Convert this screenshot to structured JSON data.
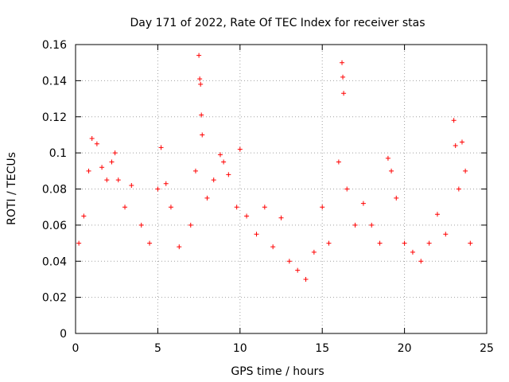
{
  "chart_data": {
    "type": "scatter",
    "title": "Day 171 of 2022, Rate Of TEC Index for receiver stas",
    "xlabel": "GPS time / hours",
    "ylabel": "ROTI / TECUs",
    "xlim": [
      0,
      25
    ],
    "ylim": [
      0,
      0.16
    ],
    "xticks": [
      0,
      5,
      10,
      15,
      20,
      25
    ],
    "yticks": [
      0,
      0.02,
      0.04,
      0.06,
      0.08,
      0.1,
      0.12,
      0.14,
      0.16
    ],
    "xtick_labels": [
      "0",
      "5",
      "10",
      "15",
      "20",
      "25"
    ],
    "ytick_labels": [
      "0",
      "0.02",
      "0.04",
      "0.06",
      "0.08",
      "0.1",
      "0.12",
      "0.14",
      "0.16"
    ],
    "grid": true,
    "legend": "none",
    "marker": "+",
    "marker_color": "#ff0000",
    "series": [
      {
        "points": [
          [
            0.2,
            0.05
          ],
          [
            0.5,
            0.065
          ],
          [
            0.8,
            0.09
          ],
          [
            1.0,
            0.108
          ],
          [
            1.3,
            0.105
          ],
          [
            1.6,
            0.092
          ],
          [
            1.9,
            0.085
          ],
          [
            2.2,
            0.095
          ],
          [
            2.4,
            0.1
          ],
          [
            2.6,
            0.085
          ],
          [
            3.0,
            0.07
          ],
          [
            3.4,
            0.082
          ],
          [
            4.0,
            0.06
          ],
          [
            4.5,
            0.05
          ],
          [
            5.0,
            0.08
          ],
          [
            5.2,
            0.103
          ],
          [
            5.5,
            0.083
          ],
          [
            5.8,
            0.07
          ],
          [
            6.3,
            0.048
          ],
          [
            7.0,
            0.06
          ],
          [
            7.3,
            0.09
          ],
          [
            7.5,
            0.154
          ],
          [
            7.55,
            0.141
          ],
          [
            7.6,
            0.138
          ],
          [
            7.65,
            0.121
          ],
          [
            7.7,
            0.11
          ],
          [
            8.0,
            0.075
          ],
          [
            8.4,
            0.085
          ],
          [
            8.8,
            0.099
          ],
          [
            9.0,
            0.095
          ],
          [
            9.3,
            0.088
          ],
          [
            9.8,
            0.07
          ],
          [
            10.0,
            0.102
          ],
          [
            10.4,
            0.065
          ],
          [
            11.0,
            0.055
          ],
          [
            11.5,
            0.07
          ],
          [
            12.0,
            0.048
          ],
          [
            12.5,
            0.064
          ],
          [
            13.0,
            0.04
          ],
          [
            13.5,
            0.035
          ],
          [
            14.0,
            0.03
          ],
          [
            14.5,
            0.045
          ],
          [
            15.0,
            0.07
          ],
          [
            15.4,
            0.05
          ],
          [
            16.0,
            0.095
          ],
          [
            16.2,
            0.15
          ],
          [
            16.25,
            0.142
          ],
          [
            16.3,
            0.133
          ],
          [
            16.5,
            0.08
          ],
          [
            17.0,
            0.06
          ],
          [
            17.5,
            0.072
          ],
          [
            18.0,
            0.06
          ],
          [
            18.5,
            0.05
          ],
          [
            19.0,
            0.097
          ],
          [
            19.2,
            0.09
          ],
          [
            19.5,
            0.075
          ],
          [
            20.0,
            0.05
          ],
          [
            20.5,
            0.045
          ],
          [
            21.0,
            0.04
          ],
          [
            21.5,
            0.05
          ],
          [
            22.0,
            0.066
          ],
          [
            22.5,
            0.055
          ],
          [
            23.0,
            0.118
          ],
          [
            23.1,
            0.104
          ],
          [
            23.3,
            0.08
          ],
          [
            23.5,
            0.106
          ],
          [
            23.7,
            0.09
          ],
          [
            24.0,
            0.05
          ]
        ]
      }
    ]
  }
}
